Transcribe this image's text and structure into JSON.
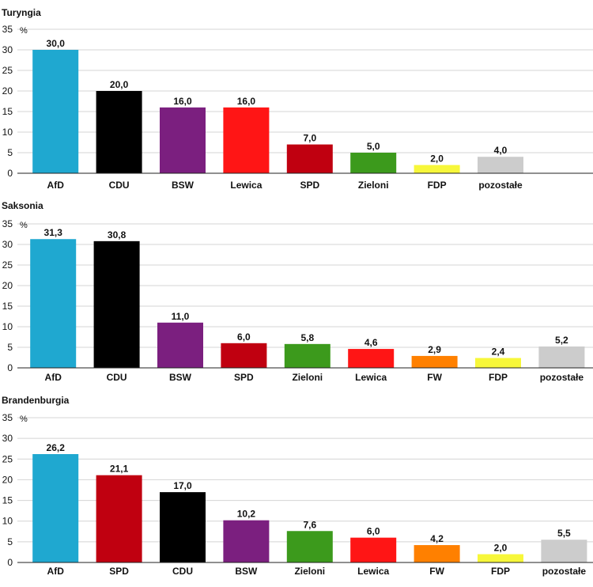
{
  "chart_data": [
    {
      "type": "bar",
      "title": "Turyngia",
      "unit": "%",
      "ylim": [
        0,
        35
      ],
      "yticks": [
        0,
        5,
        10,
        15,
        20,
        25,
        30,
        35
      ],
      "grid": true,
      "categories": [
        "AfD",
        "CDU",
        "BSW",
        "Lewica",
        "SPD",
        "Zieloni",
        "FDP",
        "pozostałe"
      ],
      "values": [
        30.0,
        20.0,
        16.0,
        16.0,
        7.0,
        5.0,
        2.0,
        4.0
      ],
      "value_labels": [
        "30,0",
        "20,0",
        "16,0",
        "16,0",
        "7,0",
        "5,0",
        "2,0",
        "4,0"
      ],
      "colors": [
        "#1fa8d0",
        "#000000",
        "#7b1f7f",
        "#ff1515",
        "#c00010",
        "#3c9a1c",
        "#f7f73a",
        "#cccccc"
      ]
    },
    {
      "type": "bar",
      "title": "Saksonia",
      "unit": "%",
      "ylim": [
        0,
        35
      ],
      "yticks": [
        0,
        5,
        10,
        15,
        20,
        25,
        30,
        35
      ],
      "grid": true,
      "categories": [
        "AfD",
        "CDU",
        "BSW",
        "SPD",
        "Zieloni",
        "Lewica",
        "FW",
        "FDP",
        "pozostałe"
      ],
      "values": [
        31.3,
        30.8,
        11.0,
        6.0,
        5.8,
        4.6,
        2.9,
        2.4,
        5.2
      ],
      "value_labels": [
        "31,3",
        "30,8",
        "11,0",
        "6,0",
        "5,8",
        "4,6",
        "2,9",
        "2,4",
        "5,2"
      ],
      "colors": [
        "#1fa8d0",
        "#000000",
        "#7b1f7f",
        "#c00010",
        "#3c9a1c",
        "#ff1515",
        "#ff8000",
        "#f7f73a",
        "#cccccc"
      ]
    },
    {
      "type": "bar",
      "title": "Brandenburgia",
      "unit": "%",
      "ylim": [
        0,
        35
      ],
      "yticks": [
        0,
        5,
        10,
        15,
        20,
        25,
        30,
        35
      ],
      "grid": true,
      "categories": [
        "AfD",
        "SPD",
        "CDU",
        "BSW",
        "Zieloni",
        "Lewica",
        "FW",
        "FDP",
        "pozostałe"
      ],
      "values": [
        26.2,
        21.1,
        17.0,
        10.2,
        7.6,
        6.0,
        4.2,
        2.0,
        5.5
      ],
      "value_labels": [
        "26,2",
        "21,1",
        "17,0",
        "10,2",
        "7,6",
        "6,0",
        "4,2",
        "2,0",
        "5,5"
      ],
      "colors": [
        "#1fa8d0",
        "#c00010",
        "#000000",
        "#7b1f7f",
        "#3c9a1c",
        "#ff1515",
        "#ff8000",
        "#f7f73a",
        "#cccccc"
      ]
    }
  ]
}
